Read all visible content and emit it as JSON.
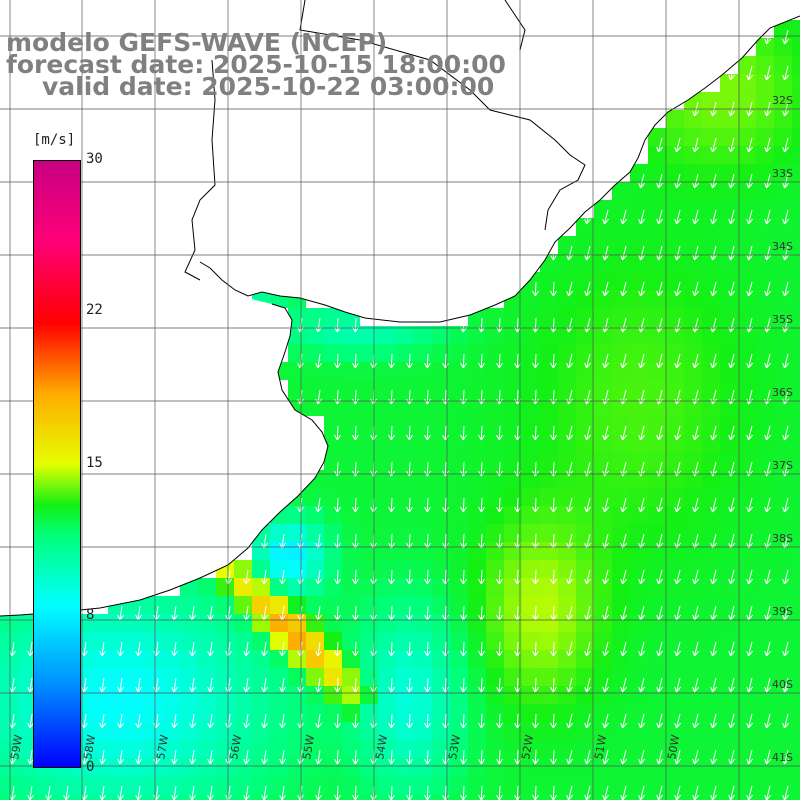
{
  "title": {
    "model": "modelo GEFS-WAVE (NCEP)",
    "forecast": "forecast date: 2025-10-15 18:00:00",
    "valid": "valid date: 2025-10-22 03:00:00"
  },
  "colorbar": {
    "units": "[m/s]",
    "ticks": [
      "30",
      "22",
      "15",
      "8",
      "0"
    ],
    "min": 0,
    "max": 30
  },
  "lat_labels": [
    "32S",
    "33S",
    "34S",
    "35S",
    "36S",
    "37S",
    "38S",
    "39S",
    "40S",
    "41S"
  ],
  "lon_labels": [
    "59W",
    "58W",
    "57W",
    "56W",
    "55W",
    "54W",
    "53W",
    "52W",
    "51W",
    "50W"
  ],
  "colors": {
    "land": "#ffffff",
    "coastline": "#000000",
    "grid": "#555555",
    "arrows": "#ffffff",
    "title_text": "#808080"
  }
}
